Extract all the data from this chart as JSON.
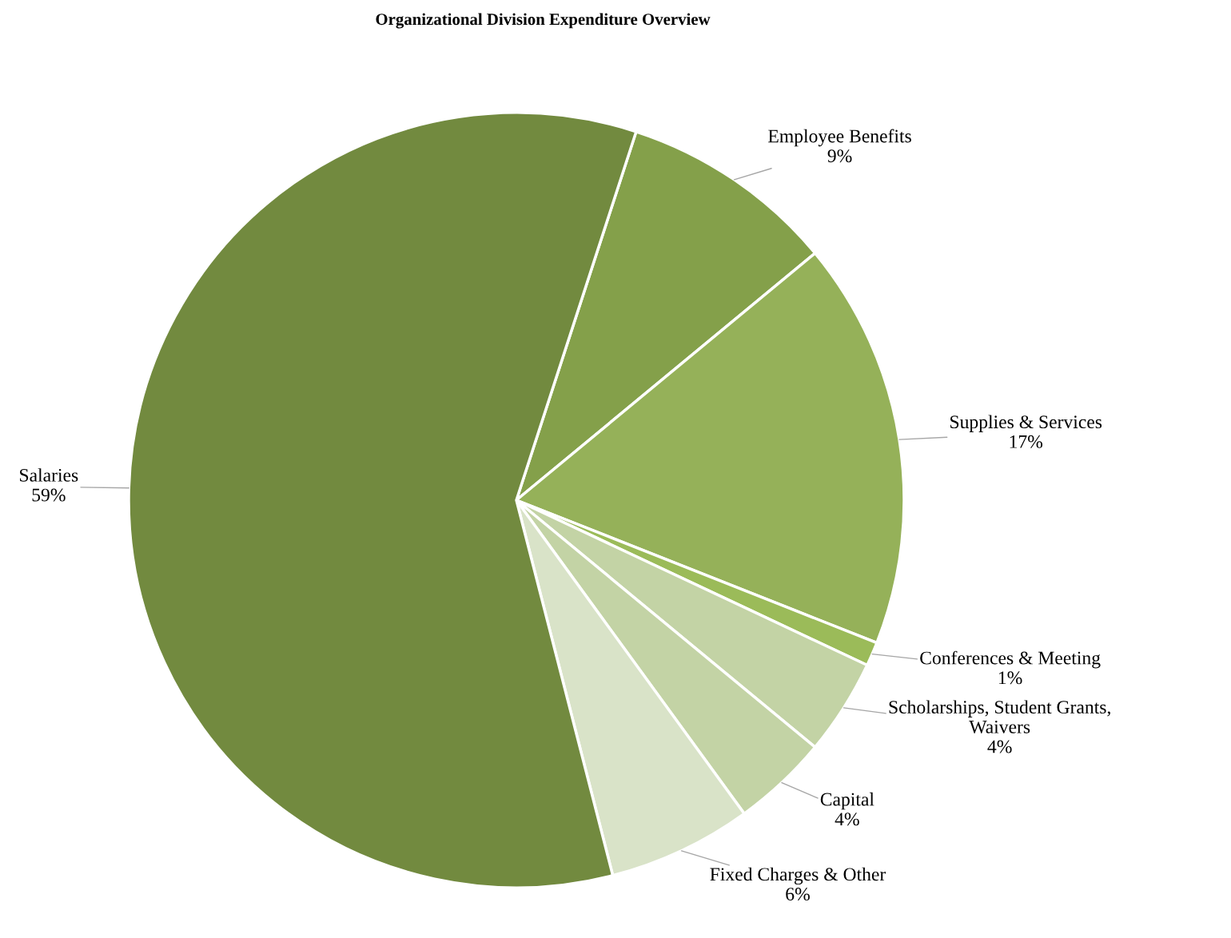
{
  "chart_data": {
    "type": "pie",
    "title": "Organizational Division Expenditure Overview",
    "categories": [
      "Employee Benefits",
      "Supplies & Services",
      "Conferences & Meeting",
      "Scholarships, Student Grants,\nWaivers",
      "Capital",
      "Fixed Charges & Other",
      "Salaries"
    ],
    "values": [
      9,
      17,
      1,
      4,
      4,
      6,
      59
    ],
    "value_labels": [
      "9%",
      "17%",
      "1%",
      "4%",
      "4%",
      "6%",
      "59%"
    ],
    "colors": [
      "#84a04a",
      "#95b159",
      "#9bbb59",
      "#c3d3a5",
      "#c3d3a5",
      "#d9e3c8",
      "#728a3f"
    ],
    "legend": false
  }
}
